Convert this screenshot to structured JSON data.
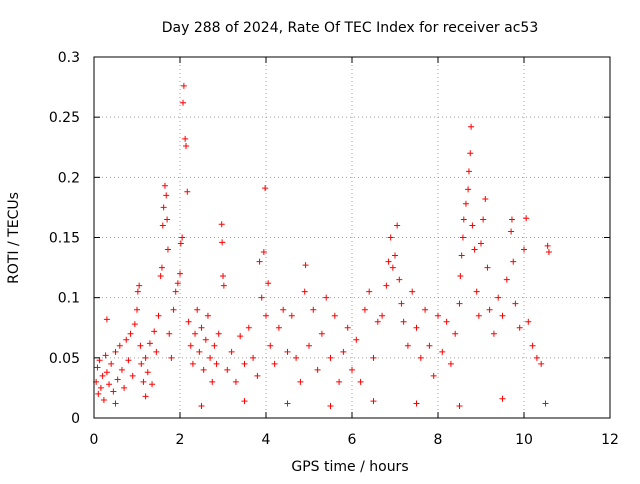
{
  "chart_data": {
    "type": "scatter",
    "title": "Day 288 of 2024, Rate Of TEC Index for receiver ac53",
    "xlabel": "GPS time / hours",
    "ylabel": "ROTI / TECUs",
    "xlim": [
      0,
      12
    ],
    "ylim": [
      0,
      0.3
    ],
    "xticks": [
      0,
      2,
      4,
      6,
      8,
      10,
      12
    ],
    "xtick_labels": [
      "0",
      "2",
      "4",
      "6",
      "8",
      "10",
      "12"
    ],
    "yticks": [
      0,
      0.05,
      0.1,
      0.15,
      0.2,
      0.25,
      0.3
    ],
    "ytick_labels": [
      "0",
      "0.05",
      "0.1",
      "0.15",
      "0.2",
      "0.25",
      "0.3"
    ],
    "grid": true,
    "marker": "+",
    "color": "#ff0000",
    "series": [
      {
        "name": "ROTI",
        "points": [
          [
            0.05,
            0.03
          ],
          [
            0.08,
            0.042
          ],
          [
            0.1,
            0.02
          ],
          [
            0.13,
            0.048
          ],
          [
            0.16,
            0.025
          ],
          [
            0.2,
            0.035
          ],
          [
            0.23,
            0.015
          ],
          [
            0.27,
            0.052
          ],
          [
            0.3,
            0.038
          ],
          [
            0.3,
            0.082
          ],
          [
            0.35,
            0.028
          ],
          [
            0.4,
            0.045
          ],
          [
            0.45,
            0.022
          ],
          [
            0.5,
            0.055
          ],
          [
            0.55,
            0.032
          ],
          [
            0.6,
            0.06
          ],
          [
            0.65,
            0.04
          ],
          [
            0.7,
            0.025
          ],
          [
            0.75,
            0.065
          ],
          [
            0.8,
            0.048
          ],
          [
            0.85,
            0.07
          ],
          [
            0.9,
            0.035
          ],
          [
            0.95,
            0.078
          ],
          [
            1.0,
            0.09
          ],
          [
            1.02,
            0.105
          ],
          [
            1.05,
            0.11
          ],
          [
            1.08,
            0.06
          ],
          [
            1.1,
            0.045
          ],
          [
            1.15,
            0.03
          ],
          [
            1.2,
            0.05
          ],
          [
            1.25,
            0.038
          ],
          [
            1.3,
            0.062
          ],
          [
            1.35,
            0.028
          ],
          [
            1.4,
            0.072
          ],
          [
            1.45,
            0.055
          ],
          [
            1.5,
            0.085
          ],
          [
            1.55,
            0.118
          ],
          [
            1.58,
            0.125
          ],
          [
            1.6,
            0.16
          ],
          [
            1.62,
            0.175
          ],
          [
            1.65,
            0.193
          ],
          [
            1.68,
            0.185
          ],
          [
            1.7,
            0.165
          ],
          [
            1.72,
            0.14
          ],
          [
            1.75,
            0.07
          ],
          [
            1.8,
            0.05
          ],
          [
            1.85,
            0.09
          ],
          [
            1.9,
            0.105
          ],
          [
            1.95,
            0.112
          ],
          [
            2.0,
            0.12
          ],
          [
            2.02,
            0.145
          ],
          [
            2.05,
            0.15
          ],
          [
            2.07,
            0.262
          ],
          [
            2.09,
            0.276
          ],
          [
            2.12,
            0.232
          ],
          [
            2.14,
            0.226
          ],
          [
            2.17,
            0.188
          ],
          [
            2.2,
            0.08
          ],
          [
            2.25,
            0.06
          ],
          [
            2.3,
            0.045
          ],
          [
            2.35,
            0.07
          ],
          [
            2.4,
            0.09
          ],
          [
            2.45,
            0.055
          ],
          [
            2.5,
            0.075
          ],
          [
            2.55,
            0.04
          ],
          [
            2.6,
            0.065
          ],
          [
            2.65,
            0.085
          ],
          [
            2.7,
            0.05
          ],
          [
            2.75,
            0.03
          ],
          [
            2.8,
            0.06
          ],
          [
            2.85,
            0.045
          ],
          [
            2.9,
            0.07
          ],
          [
            2.97,
            0.161
          ],
          [
            2.98,
            0.146
          ],
          [
            3.0,
            0.118
          ],
          [
            3.02,
            0.11
          ],
          [
            3.1,
            0.04
          ],
          [
            3.2,
            0.055
          ],
          [
            3.3,
            0.03
          ],
          [
            3.4,
            0.068
          ],
          [
            3.5,
            0.045
          ],
          [
            3.6,
            0.075
          ],
          [
            3.7,
            0.05
          ],
          [
            3.8,
            0.035
          ],
          [
            3.85,
            0.13
          ],
          [
            3.9,
            0.1
          ],
          [
            3.95,
            0.138
          ],
          [
            3.98,
            0.191
          ],
          [
            4.0,
            0.085
          ],
          [
            4.05,
            0.112
          ],
          [
            4.1,
            0.06
          ],
          [
            4.2,
            0.045
          ],
          [
            4.3,
            0.075
          ],
          [
            4.4,
            0.09
          ],
          [
            4.5,
            0.055
          ],
          [
            4.6,
            0.085
          ],
          [
            4.7,
            0.05
          ],
          [
            4.8,
            0.03
          ],
          [
            4.9,
            0.105
          ],
          [
            4.92,
            0.127
          ],
          [
            5.0,
            0.06
          ],
          [
            5.1,
            0.09
          ],
          [
            5.2,
            0.04
          ],
          [
            5.3,
            0.07
          ],
          [
            5.4,
            0.1
          ],
          [
            5.5,
            0.05
          ],
          [
            5.6,
            0.085
          ],
          [
            5.7,
            0.03
          ],
          [
            5.8,
            0.055
          ],
          [
            5.9,
            0.075
          ],
          [
            6.0,
            0.04
          ],
          [
            6.1,
            0.065
          ],
          [
            6.2,
            0.03
          ],
          [
            6.3,
            0.09
          ],
          [
            6.4,
            0.105
          ],
          [
            6.5,
            0.05
          ],
          [
            6.6,
            0.08
          ],
          [
            6.7,
            0.085
          ],
          [
            6.8,
            0.11
          ],
          [
            6.85,
            0.13
          ],
          [
            6.9,
            0.15
          ],
          [
            6.95,
            0.125
          ],
          [
            7.0,
            0.135
          ],
          [
            7.05,
            0.16
          ],
          [
            7.1,
            0.115
          ],
          [
            7.15,
            0.095
          ],
          [
            7.2,
            0.08
          ],
          [
            7.3,
            0.06
          ],
          [
            7.4,
            0.105
          ],
          [
            7.5,
            0.075
          ],
          [
            7.6,
            0.05
          ],
          [
            7.7,
            0.09
          ],
          [
            7.8,
            0.06
          ],
          [
            7.9,
            0.035
          ],
          [
            8.0,
            0.085
          ],
          [
            8.1,
            0.055
          ],
          [
            8.2,
            0.08
          ],
          [
            8.3,
            0.045
          ],
          [
            8.4,
            0.07
          ],
          [
            8.5,
            0.095
          ],
          [
            8.52,
            0.118
          ],
          [
            8.55,
            0.135
          ],
          [
            8.58,
            0.15
          ],
          [
            8.6,
            0.165
          ],
          [
            8.65,
            0.178
          ],
          [
            8.7,
            0.19
          ],
          [
            8.72,
            0.205
          ],
          [
            8.75,
            0.22
          ],
          [
            8.77,
            0.242
          ],
          [
            8.8,
            0.16
          ],
          [
            8.85,
            0.14
          ],
          [
            8.9,
            0.105
          ],
          [
            8.95,
            0.085
          ],
          [
            9.0,
            0.145
          ],
          [
            9.05,
            0.165
          ],
          [
            9.1,
            0.182
          ],
          [
            9.15,
            0.125
          ],
          [
            9.2,
            0.09
          ],
          [
            9.3,
            0.07
          ],
          [
            9.4,
            0.1
          ],
          [
            9.5,
            0.085
          ],
          [
            9.6,
            0.115
          ],
          [
            9.7,
            0.155
          ],
          [
            9.72,
            0.165
          ],
          [
            9.75,
            0.13
          ],
          [
            9.8,
            0.095
          ],
          [
            9.9,
            0.075
          ],
          [
            10.0,
            0.14
          ],
          [
            10.05,
            0.166
          ],
          [
            10.1,
            0.08
          ],
          [
            10.2,
            0.06
          ],
          [
            10.3,
            0.05
          ],
          [
            10.4,
            0.045
          ],
          [
            10.55,
            0.143
          ],
          [
            10.58,
            0.138
          ],
          [
            0.5,
            0.012
          ],
          [
            1.2,
            0.018
          ],
          [
            2.5,
            0.01
          ],
          [
            3.5,
            0.014
          ],
          [
            4.5,
            0.012
          ],
          [
            5.5,
            0.01
          ],
          [
            6.5,
            0.014
          ],
          [
            7.5,
            0.012
          ],
          [
            8.5,
            0.01
          ],
          [
            9.5,
            0.016
          ],
          [
            10.5,
            0.012
          ]
        ]
      }
    ]
  }
}
